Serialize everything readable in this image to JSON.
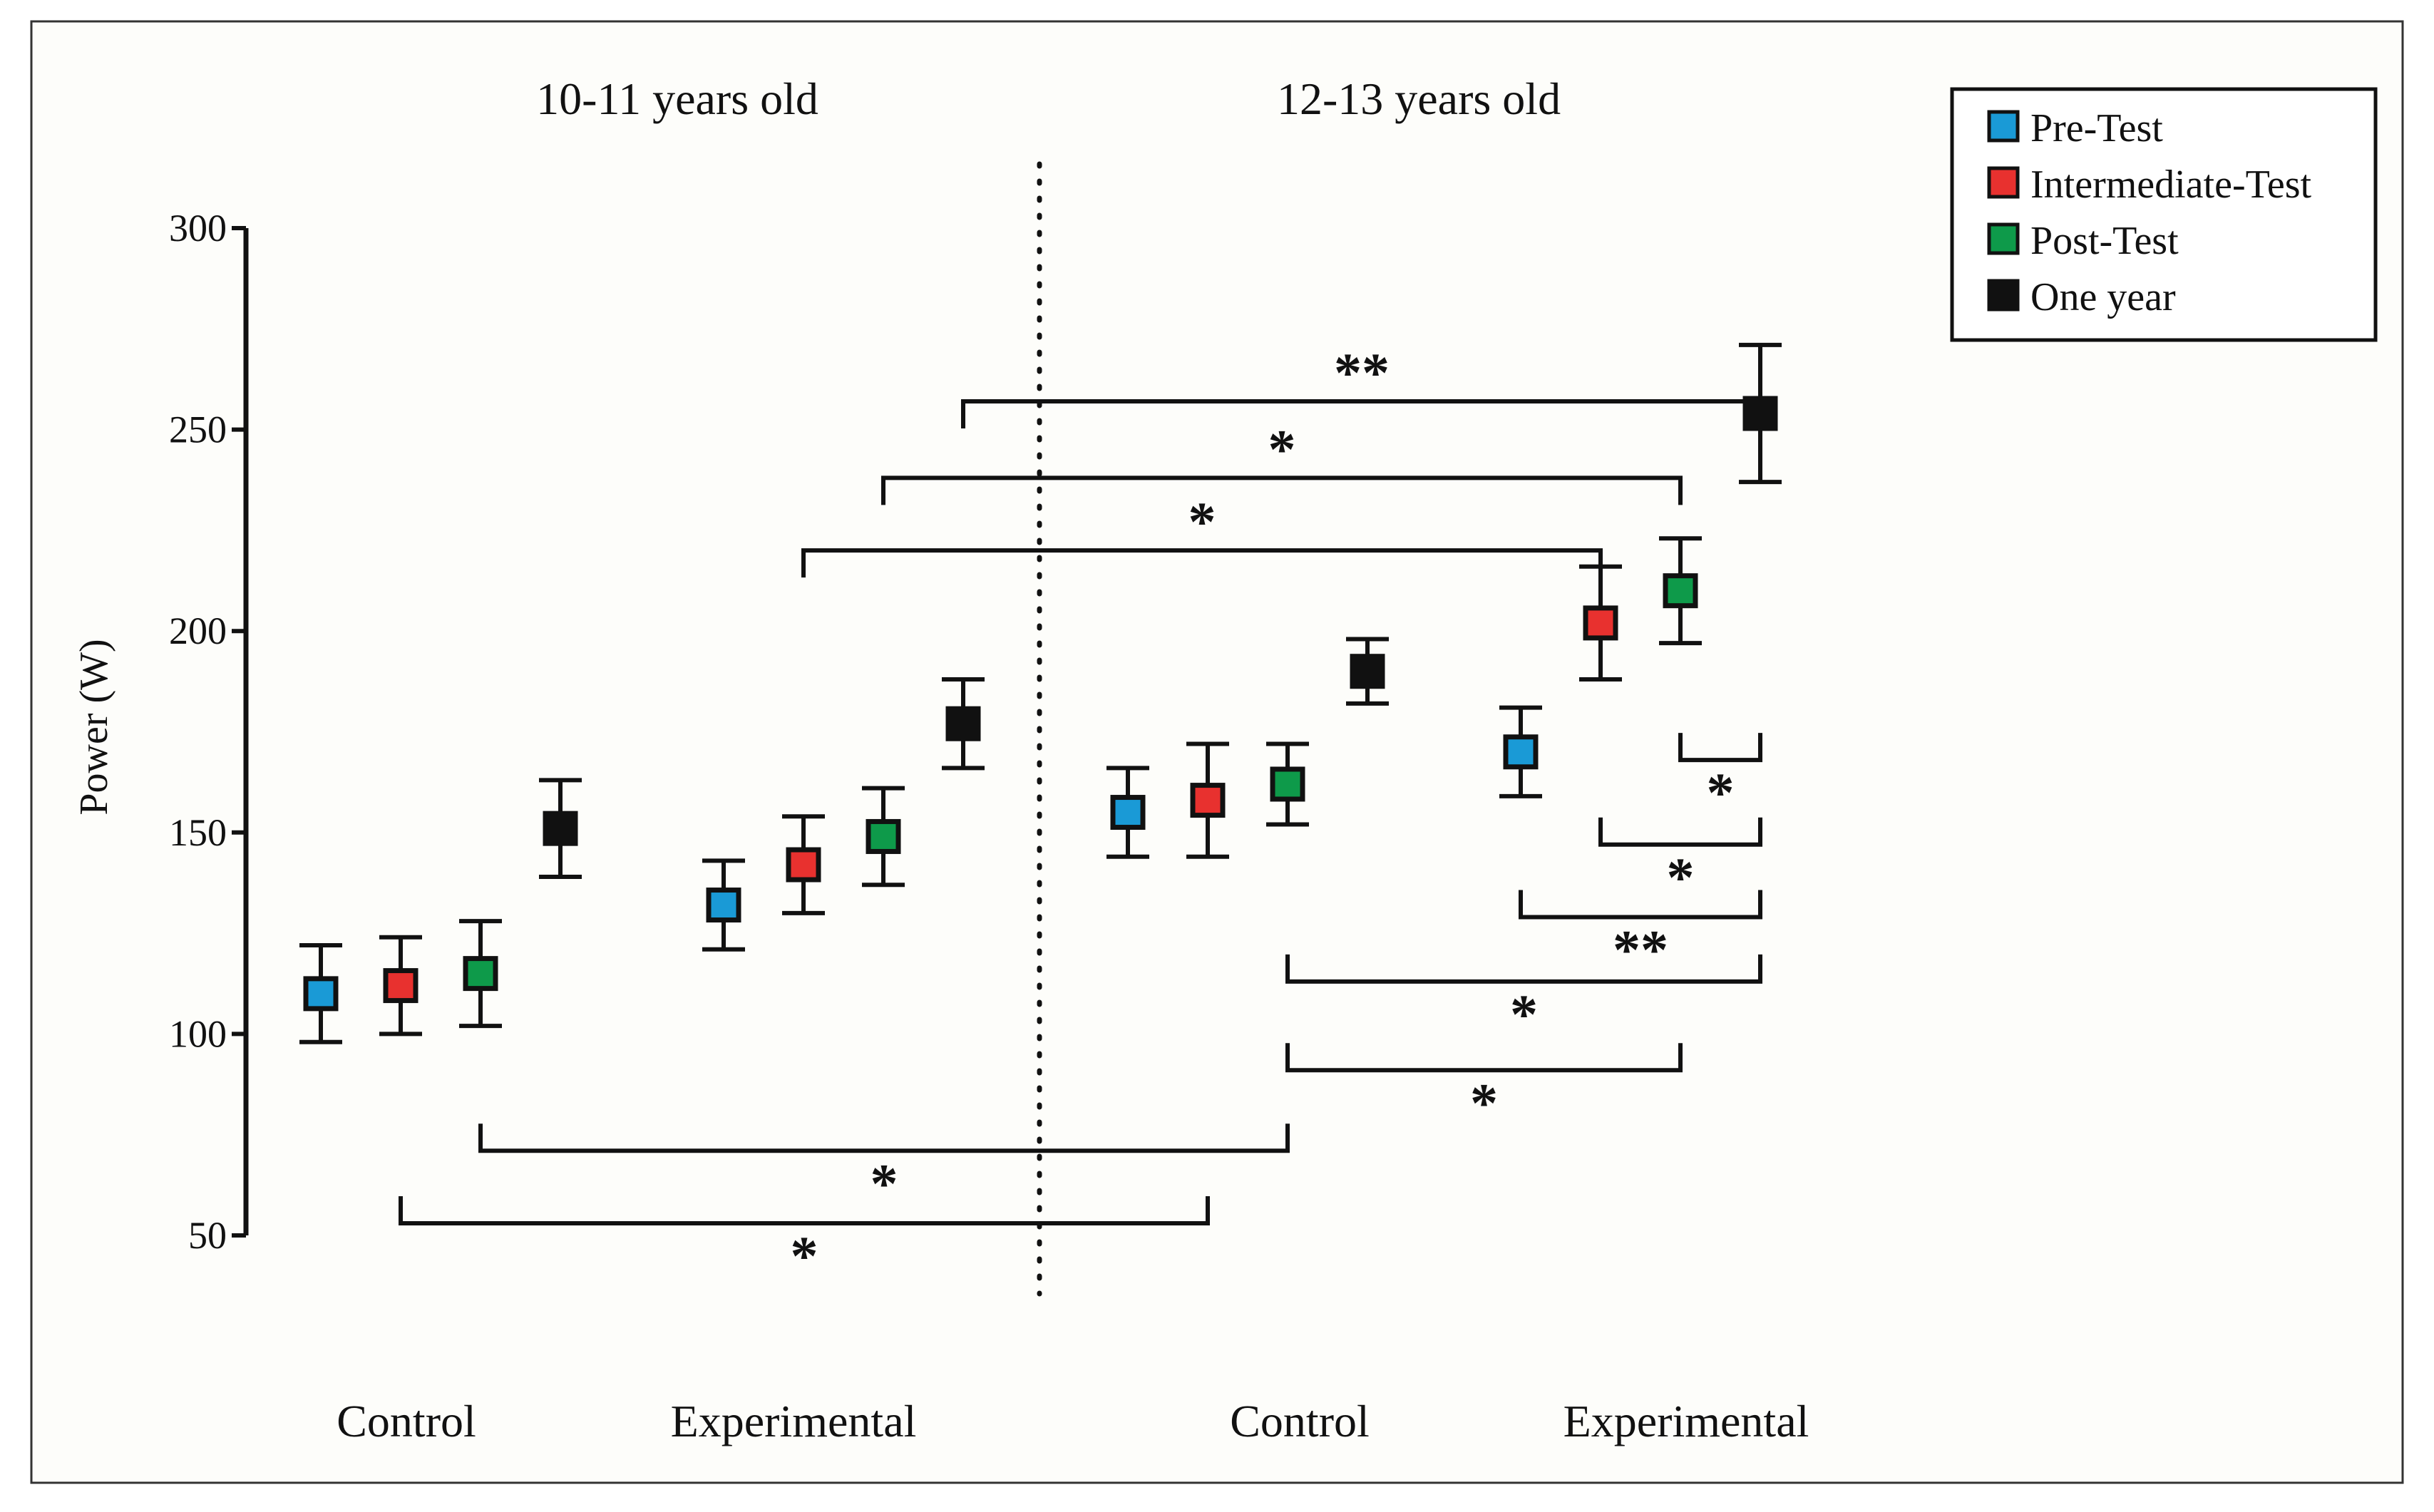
{
  "chart_data": {
    "type": "scatter",
    "ylabel": "Power (W)",
    "xlabel": "",
    "ylim": [
      50,
      300
    ],
    "yticks": [
      50,
      100,
      150,
      200,
      250,
      300
    ],
    "grid": false,
    "legend_position": "top-right",
    "age_groups": [
      "10-11 years old",
      "12-13 years old"
    ],
    "group_labels": [
      "Control",
      "Experimental",
      "Control",
      "Experimental"
    ],
    "series": [
      {
        "key": "pre",
        "name": "Pre-Test",
        "color": "#1a9ad6",
        "values": [
          110,
          132,
          155,
          170
        ],
        "errors": [
          12,
          11,
          11,
          11
        ]
      },
      {
        "key": "inter",
        "name": "Intermediate-Test",
        "color": "#e8312f",
        "values": [
          112,
          142,
          158,
          202
        ],
        "errors": [
          12,
          12,
          14,
          14
        ]
      },
      {
        "key": "post",
        "name": "Post-Test",
        "color": "#0e9a4a",
        "values": [
          115,
          149,
          162,
          210
        ],
        "errors": [
          13,
          12,
          10,
          13
        ]
      },
      {
        "key": "one_year",
        "name": "One year",
        "color": "#111111",
        "values": [
          151,
          177,
          190,
          254
        ],
        "errors": [
          12,
          11,
          8,
          17
        ]
      }
    ],
    "significance": [
      {
        "from": [
          3,
          "one_year"
        ],
        "to": [
          1,
          "one_year"
        ],
        "level": 257,
        "label": "**",
        "side": "above"
      },
      {
        "from": [
          3,
          "post"
        ],
        "to": [
          1,
          "post"
        ],
        "level": 238,
        "label": "*",
        "side": "above"
      },
      {
        "from": [
          3,
          "inter"
        ],
        "to": [
          1,
          "inter"
        ],
        "level": 220,
        "label": "*",
        "side": "above"
      },
      {
        "from": [
          3,
          "one_year"
        ],
        "to": [
          3,
          "post"
        ],
        "level": 168,
        "label": "*",
        "side": "below"
      },
      {
        "from": [
          3,
          "one_year"
        ],
        "to": [
          3,
          "inter"
        ],
        "level": 147,
        "label": "*",
        "side": "below"
      },
      {
        "from": [
          3,
          "one_year"
        ],
        "to": [
          3,
          "pre"
        ],
        "level": 129,
        "label": "**",
        "side": "below"
      },
      {
        "from": [
          3,
          "one_year"
        ],
        "to": [
          2,
          "post"
        ],
        "level": 113,
        "label": "*",
        "side": "below"
      },
      {
        "from": [
          3,
          "post"
        ],
        "to": [
          2,
          "post"
        ],
        "level": 91,
        "label": "*",
        "side": "below"
      },
      {
        "from": [
          0,
          "post"
        ],
        "to": [
          2,
          "post"
        ],
        "level": 71,
        "label": "*",
        "side": "below"
      },
      {
        "from": [
          0,
          "inter"
        ],
        "to": [
          2,
          "inter"
        ],
        "level": 53,
        "label": "*",
        "side": "below"
      }
    ]
  },
  "colors": {
    "background": "#fdfdfa",
    "border": "#333333",
    "axis": "#111111"
  }
}
